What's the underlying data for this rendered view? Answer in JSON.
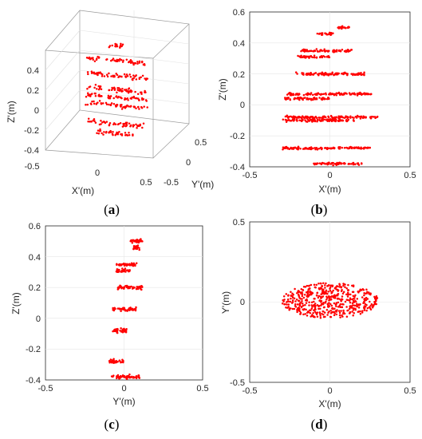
{
  "chart_data": [
    {
      "type": "scatter",
      "view": "3d",
      "caption": "a",
      "xlabel": "X'(m)",
      "ylabel": "Y'(m)",
      "zlabel": "Z'(m)",
      "xlim": [
        -0.5,
        0.5
      ],
      "ylim": [
        -0.5,
        0.5
      ],
      "zlim": [
        -0.4,
        0.6
      ],
      "xticks": [
        "-0.5",
        "0",
        "0.5"
      ],
      "yticks": [
        "-0.5",
        "0",
        "0.5"
      ],
      "zticks": [
        "-0.4",
        "-0.2",
        "0",
        "0.2",
        "0.4"
      ],
      "grid": true,
      "marker_color": "#ff0000",
      "layers": [
        -0.38,
        -0.28,
        -0.1,
        -0.02,
        0.06,
        0.2,
        0.35,
        0.5
      ]
    },
    {
      "type": "scatter",
      "view": "X'-Z'",
      "caption": "b",
      "xlabel": "X'(m)",
      "ylabel": "Z'(m)",
      "xlim": [
        -0.5,
        0.5
      ],
      "ylim": [
        -0.4,
        0.6
      ],
      "xticks": [
        "-0.5",
        "0",
        "0.5"
      ],
      "yticks": [
        "-0.4",
        "-0.2",
        "0",
        "0.2",
        "0.4",
        "0.6"
      ],
      "grid": true,
      "marker_color": "#ff0000",
      "layers": [
        {
          "z": 0.5,
          "x_range": [
            0.05,
            0.12
          ]
        },
        {
          "z": 0.46,
          "x_range": [
            -0.08,
            0.02
          ]
        },
        {
          "z": 0.35,
          "x_range": [
            -0.18,
            0.14
          ]
        },
        {
          "z": 0.31,
          "x_range": [
            -0.2,
            0.0
          ]
        },
        {
          "z": 0.2,
          "x_range": [
            -0.22,
            0.22
          ]
        },
        {
          "z": 0.07,
          "x_range": [
            -0.27,
            0.27
          ]
        },
        {
          "z": 0.04,
          "x_range": [
            -0.28,
            0.0
          ]
        },
        {
          "z": -0.08,
          "x_range": [
            -0.28,
            0.3
          ]
        },
        {
          "z": -0.1,
          "x_range": [
            -0.3,
            0.15
          ]
        },
        {
          "z": -0.28,
          "x_range": [
            -0.3,
            0.25
          ]
        },
        {
          "z": -0.38,
          "x_range": [
            -0.1,
            0.2
          ]
        }
      ]
    },
    {
      "type": "scatter",
      "view": "Y'-Z'",
      "caption": "c",
      "xlabel": "Y'(m)",
      "ylabel": "Z'(m)",
      "xlim": [
        -0.5,
        0.5
      ],
      "ylim": [
        -0.4,
        0.6
      ],
      "xticks": [
        "-0.5",
        "0",
        "0.5"
      ],
      "yticks": [
        "-0.4",
        "-0.2",
        "0",
        "0.2",
        "0.4",
        "0.6"
      ],
      "grid": true,
      "marker_color": "#ff0000",
      "layers": [
        {
          "z": 0.5,
          "y_range": [
            0.04,
            0.12
          ]
        },
        {
          "z": 0.46,
          "y_range": [
            0.06,
            0.1
          ]
        },
        {
          "z": 0.35,
          "y_range": [
            -0.05,
            0.08
          ]
        },
        {
          "z": 0.31,
          "y_range": [
            -0.05,
            0.04
          ]
        },
        {
          "z": 0.2,
          "y_range": [
            -0.04,
            0.12
          ]
        },
        {
          "z": 0.06,
          "y_range": [
            -0.08,
            0.08
          ]
        },
        {
          "z": -0.08,
          "y_range": [
            -0.08,
            0.02
          ]
        },
        {
          "z": -0.28,
          "y_range": [
            -0.1,
            0.0
          ]
        },
        {
          "z": -0.38,
          "y_range": [
            -0.08,
            0.1
          ]
        }
      ]
    },
    {
      "type": "scatter",
      "view": "X'-Y'",
      "caption": "d",
      "xlabel": "X'(m)",
      "ylabel": "Y'(m)",
      "xlim": [
        -0.5,
        0.5
      ],
      "ylim": [
        -0.5,
        0.5
      ],
      "xticks": [
        "-0.5",
        "0",
        "0.5"
      ],
      "yticks": [
        "-0.5",
        "0",
        "0.5"
      ],
      "grid": true,
      "marker_color": "#ff0000",
      "cloud": {
        "x_range": [
          -0.3,
          0.3
        ],
        "y_range": [
          -0.1,
          0.12
        ]
      }
    }
  ]
}
